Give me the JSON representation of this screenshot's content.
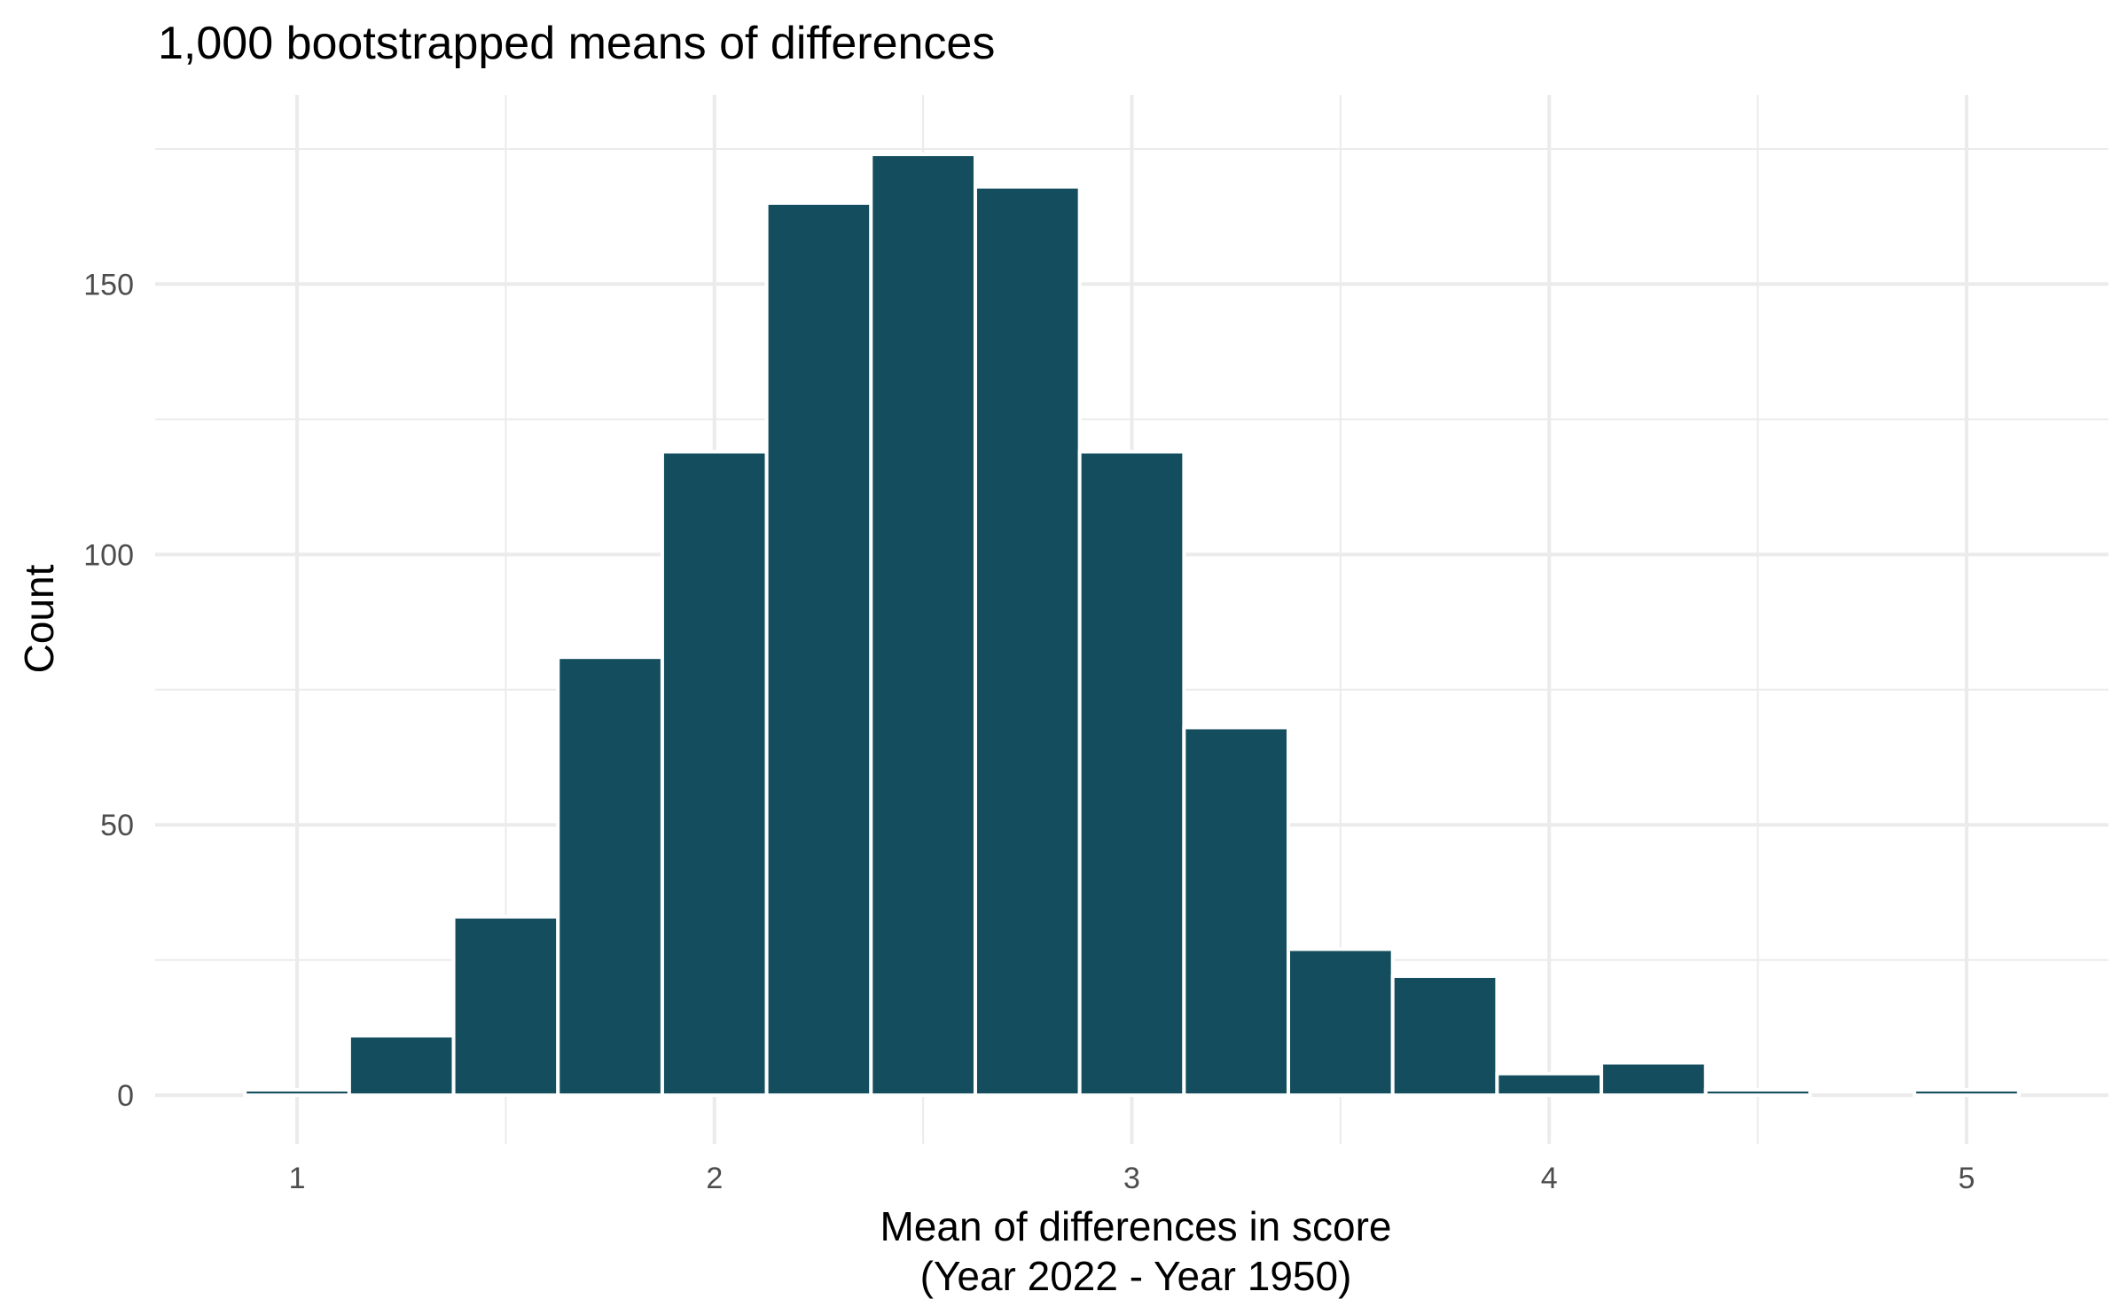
{
  "chart_data": {
    "type": "bar",
    "title": "1,000 bootstrapped means of differences",
    "xlabel_lines": [
      "Mean of differences in score",
      "(Year 2022 - Year 1950)"
    ],
    "ylabel": "Count",
    "bin_width": 0.25,
    "bins": [
      {
        "center": 1.0,
        "count": 1
      },
      {
        "center": 1.25,
        "count": 11
      },
      {
        "center": 1.5,
        "count": 33
      },
      {
        "center": 1.75,
        "count": 81
      },
      {
        "center": 2.0,
        "count": 119
      },
      {
        "center": 2.25,
        "count": 165
      },
      {
        "center": 2.5,
        "count": 174
      },
      {
        "center": 2.75,
        "count": 168
      },
      {
        "center": 3.0,
        "count": 119
      },
      {
        "center": 3.25,
        "count": 68
      },
      {
        "center": 3.5,
        "count": 27
      },
      {
        "center": 3.75,
        "count": 22
      },
      {
        "center": 4.0,
        "count": 4
      },
      {
        "center": 4.25,
        "count": 6
      },
      {
        "center": 4.5,
        "count": 1
      },
      {
        "center": 4.75,
        "count": 0
      },
      {
        "center": 5.0,
        "count": 1
      }
    ],
    "xlim": [
      0.66,
      5.34
    ],
    "ylim": [
      -9,
      185
    ],
    "x_ticks": [
      1,
      2,
      3,
      4,
      5
    ],
    "x_tick_labels": [
      "1",
      "2",
      "3",
      "4",
      "5"
    ],
    "y_ticks": [
      0,
      50,
      100,
      150
    ],
    "y_tick_labels": [
      "0",
      "50",
      "100",
      "150"
    ],
    "grid": true,
    "bar_color": "#134d5e",
    "bar_outline_color": "#ffffff",
    "grid_color": "#ebebeb"
  }
}
